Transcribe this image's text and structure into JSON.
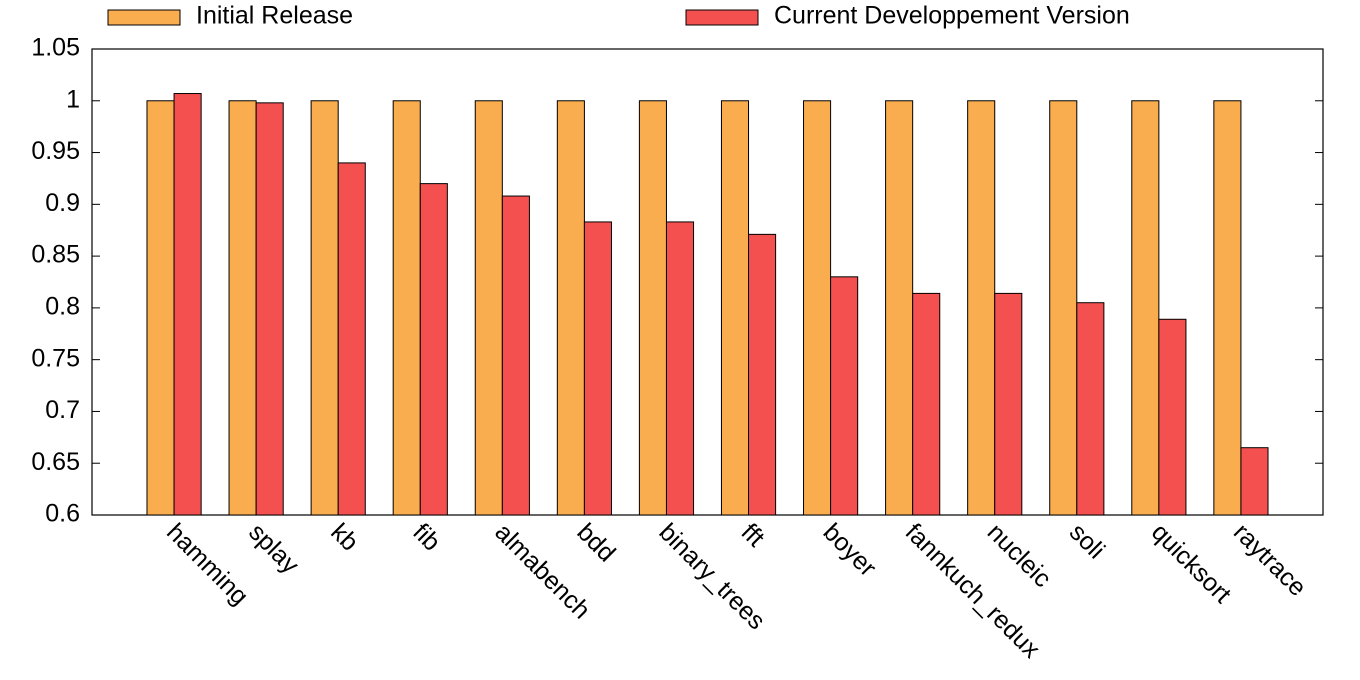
{
  "chart_data": {
    "type": "bar",
    "categories": [
      "hamming",
      "splay",
      "kb",
      "fib",
      "almabench",
      "bdd",
      "binary_trees",
      "fft",
      "boyer",
      "fannkuch_redux",
      "nucleic",
      "soli",
      "quicksort",
      "raytrace"
    ],
    "series": [
      {
        "name": "Initial Release",
        "color": "#f9ad4f",
        "values": [
          1,
          1,
          1,
          1,
          1,
          1,
          1,
          1,
          1,
          1,
          1,
          1,
          1,
          1
        ]
      },
      {
        "name": "Current Developpement Version",
        "color": "#f55050",
        "values": [
          1.007,
          0.998,
          0.94,
          0.92,
          0.908,
          0.883,
          0.883,
          0.871,
          0.83,
          0.814,
          0.814,
          0.805,
          0.789,
          0.665
        ]
      }
    ],
    "ylim": [
      0.6,
      1.05
    ],
    "yticks": [
      0.6,
      0.65,
      0.7,
      0.75,
      0.8,
      0.85,
      0.9,
      0.95,
      1,
      1.05
    ],
    "grid": false,
    "legend": "top"
  }
}
